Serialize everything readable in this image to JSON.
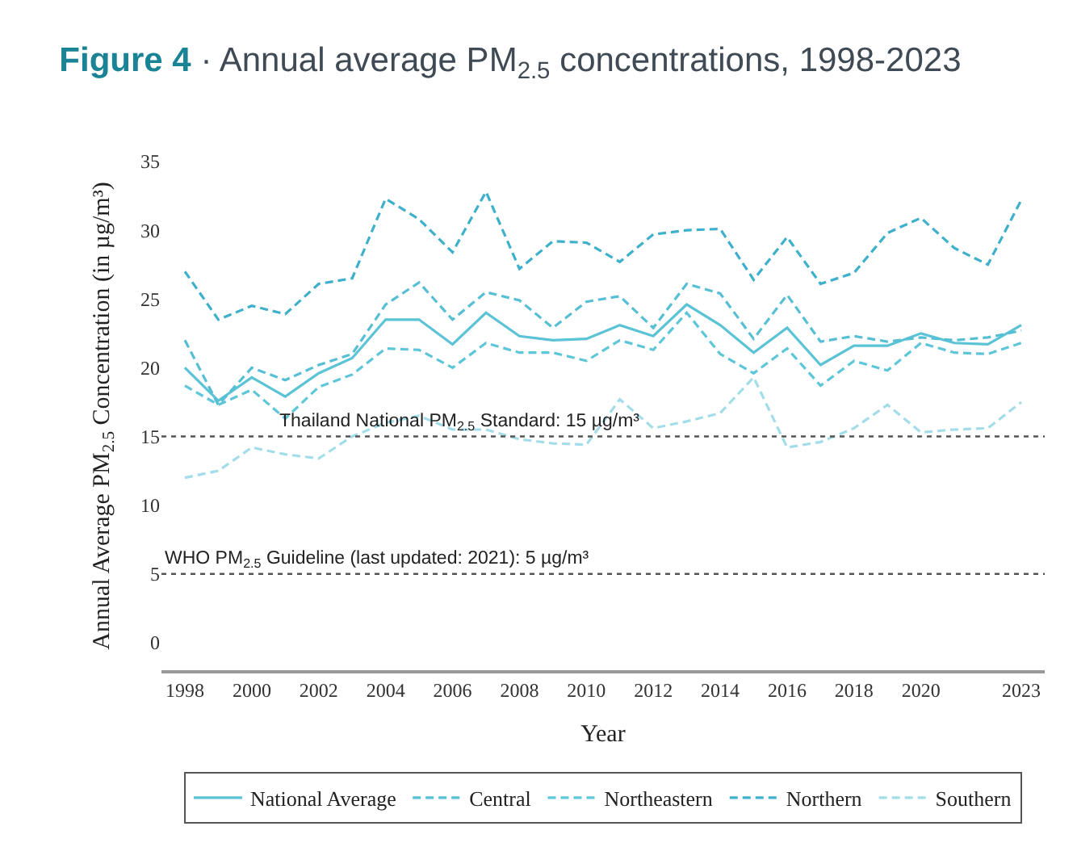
{
  "chart_data": {
    "type": "line",
    "title": "Figure 4 · Annual average PM$_{2.5}$ concentrations, 1998-2023",
    "xlabel": "Year",
    "ylabel": "Annual Average PM$_{2.5}$ Concentration (in µg/m³)",
    "x": [
      1998,
      1999,
      2000,
      2001,
      2002,
      2003,
      2004,
      2005,
      2006,
      2007,
      2008,
      2009,
      2010,
      2011,
      2012,
      2013,
      2014,
      2015,
      2016,
      2017,
      2018,
      2019,
      2020,
      2021,
      2022,
      2023
    ],
    "series": [
      {
        "name": "National Average",
        "color": "#5bc3d6",
        "line_style": "solid",
        "values": [
          20.0,
          17.6,
          19.3,
          17.9,
          19.6,
          20.7,
          23.5,
          23.5,
          21.7,
          24.0,
          22.3,
          22.0,
          22.1,
          23.1,
          22.3,
          24.6,
          23.1,
          21.1,
          22.9,
          20.2,
          21.6,
          21.6,
          22.5,
          21.8,
          21.7,
          23.1
        ]
      },
      {
        "name": "Central",
        "color": "#56bfd4",
        "line_style": "dashed",
        "values": [
          22.0,
          17.3,
          20.0,
          19.1,
          20.2,
          21.0,
          24.6,
          26.2,
          23.5,
          25.5,
          24.9,
          22.9,
          24.8,
          25.2,
          22.9,
          26.1,
          25.4,
          22.1,
          25.3,
          21.9,
          22.3,
          21.9,
          22.2,
          22.0,
          22.2,
          22.7
        ]
      },
      {
        "name": "Northeastern",
        "color": "#5ec6d9",
        "line_style": "dashed",
        "values": [
          18.7,
          17.3,
          18.4,
          16.3,
          18.6,
          19.5,
          21.4,
          21.3,
          20.0,
          21.8,
          21.1,
          21.1,
          20.5,
          22.0,
          21.3,
          24.0,
          21.0,
          19.6,
          21.4,
          18.7,
          20.5,
          19.8,
          21.8,
          21.1,
          21.0,
          21.8
        ]
      },
      {
        "name": "Northern",
        "color": "#3eb0cc",
        "line_style": "dashed",
        "values": [
          27.0,
          23.5,
          24.5,
          23.9,
          26.1,
          26.5,
          32.3,
          30.8,
          28.4,
          32.8,
          27.2,
          29.2,
          29.1,
          27.7,
          29.7,
          30.0,
          30.1,
          26.4,
          29.5,
          26.1,
          26.9,
          29.8,
          30.9,
          28.7,
          27.5,
          32.2
        ]
      },
      {
        "name": "Southern",
        "color": "#a3dde9",
        "line_style": "dashed",
        "values": [
          12.0,
          12.5,
          14.2,
          13.7,
          13.4,
          15.0,
          16.0,
          16.5,
          15.5,
          15.5,
          14.8,
          14.5,
          14.4,
          17.7,
          15.6,
          16.1,
          16.7,
          19.3,
          14.2,
          14.6,
          15.6,
          17.3,
          15.3,
          15.5,
          15.6,
          17.5
        ]
      }
    ],
    "xlim": [
      1997.3,
      2023.7
    ],
    "xticks": [
      1998,
      2000,
      2002,
      2004,
      2006,
      2008,
      2010,
      2012,
      2014,
      2016,
      2018,
      2020,
      2023
    ],
    "ylim": [
      -2,
      35
    ],
    "yticks": [
      0,
      5,
      10,
      15,
      20,
      25,
      30,
      35
    ],
    "ref_lines": [
      {
        "axis": "y",
        "value": 15,
        "label": "Thailand National PM$_{2.5}$ Standard: 15 µg/m³",
        "color": "#555555",
        "line_style": "dotted"
      },
      {
        "axis": "y",
        "value": 5,
        "label": "WHO PM$_{2.5}$ Guideline (last updated: 2021): 5 µg/m³",
        "color": "#555555",
        "line_style": "dotted"
      }
    ],
    "legend": "bottom",
    "marker": "none"
  }
}
